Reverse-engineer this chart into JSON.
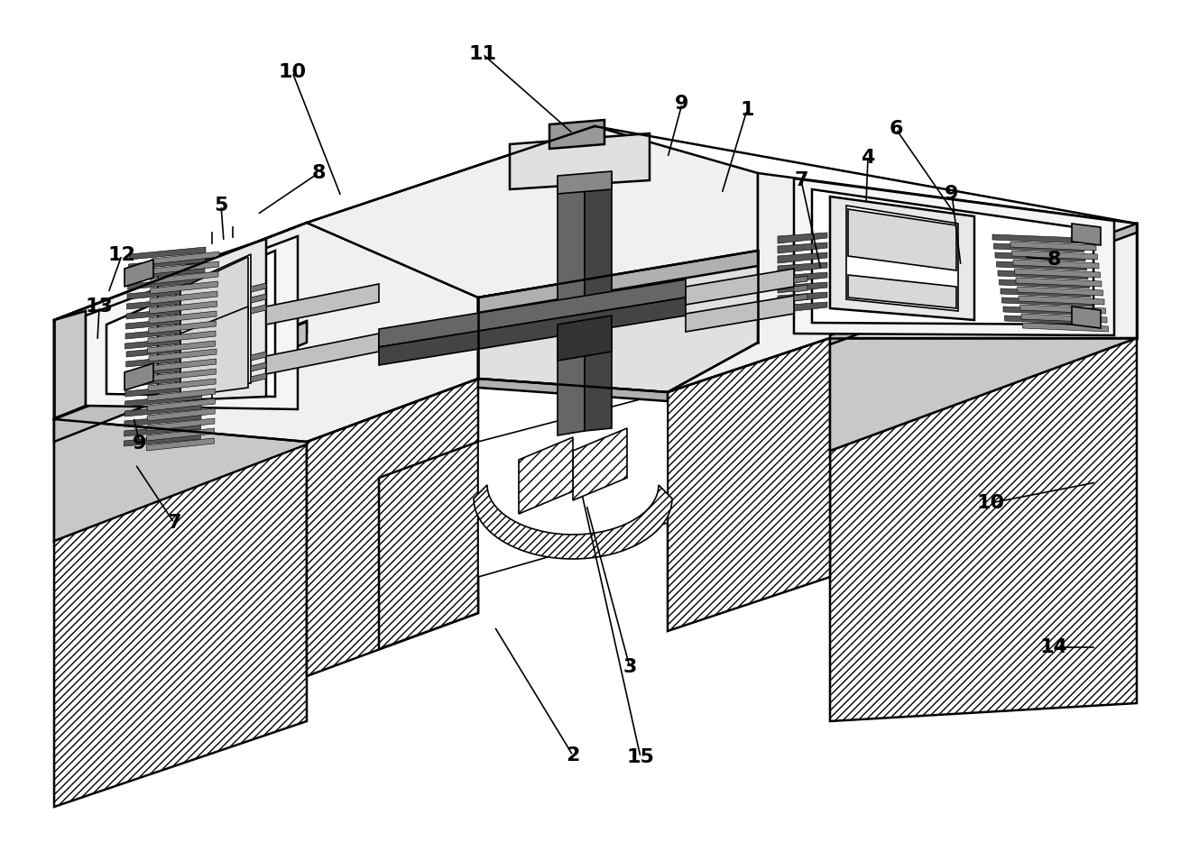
{
  "bg_color": "#ffffff",
  "lw_main": 1.8,
  "lw_thin": 1.2,
  "fc_top": "#f2f2f2",
  "fc_side": "#d8d8d8",
  "fc_front": "#e8e8e8",
  "fc_dark": "#aaaaaa",
  "fc_mems": "#e0e0e0",
  "fc_inner": "#f8f8f8",
  "labels": [
    [
      "1",
      800,
      215,
      828,
      122
    ],
    [
      "2",
      548,
      695,
      635,
      838
    ],
    [
      "3",
      650,
      560,
      698,
      740
    ],
    [
      "4",
      960,
      225,
      962,
      175
    ],
    [
      "5",
      248,
      268,
      245,
      228
    ],
    [
      "6",
      1060,
      240,
      993,
      143
    ],
    [
      "7",
      910,
      300,
      888,
      200
    ],
    [
      "7",
      150,
      515,
      193,
      580
    ],
    [
      "8",
      285,
      238,
      353,
      192
    ],
    [
      "8",
      1135,
      285,
      1168,
      288
    ],
    [
      "9",
      740,
      175,
      756,
      115
    ],
    [
      "9",
      1065,
      295,
      1055,
      215
    ],
    [
      "9",
      148,
      463,
      155,
      492
    ],
    [
      "10",
      378,
      218,
      324,
      80
    ],
    [
      "10",
      1215,
      535,
      1098,
      558
    ],
    [
      "11",
      635,
      148,
      535,
      60
    ],
    [
      "12",
      120,
      325,
      135,
      283
    ],
    [
      "13",
      108,
      378,
      110,
      340
    ],
    [
      "14",
      1215,
      718,
      1168,
      718
    ],
    [
      "15",
      645,
      548,
      710,
      840
    ]
  ]
}
